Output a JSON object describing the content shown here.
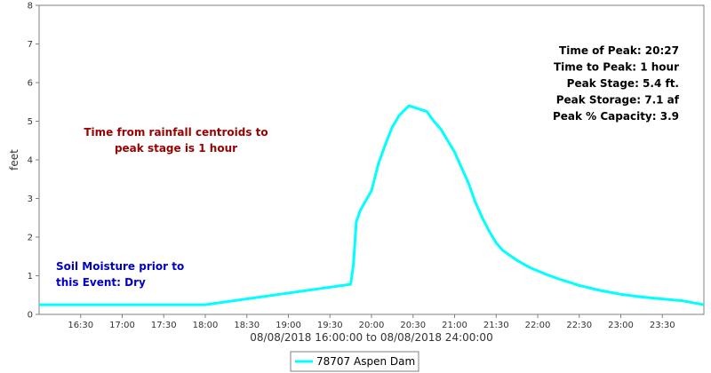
{
  "chart_data": {
    "type": "line",
    "xlabel": "08/08/2018 16:00:00 to 08/08/2018 24:00:00",
    "ylabel": "feet",
    "xlim": [
      "16:00",
      "24:00"
    ],
    "ylim": [
      0,
      8
    ],
    "x_tick_labels": [
      "16:30",
      "17:00",
      "17:30",
      "18:00",
      "18:30",
      "19:00",
      "19:30",
      "20:00",
      "20:30",
      "21:00",
      "21:30",
      "22:00",
      "22:30",
      "23:00",
      "23:30"
    ],
    "y_tick_labels": [
      "0",
      "1",
      "2",
      "3",
      "4",
      "5",
      "6",
      "7",
      "8"
    ],
    "grid": false,
    "legend_position": "bottom-center",
    "series": [
      {
        "name": "78707 Aspen Dam",
        "color": "#00ffff",
        "x": [
          "16:00",
          "18:00",
          "19:45",
          "19:47",
          "19:49",
          "19:52",
          "20:00",
          "20:05",
          "20:10",
          "20:15",
          "20:20",
          "20:27",
          "20:40",
          "20:45",
          "20:50",
          "21:00",
          "21:05",
          "21:10",
          "21:15",
          "21:20",
          "21:25",
          "21:30",
          "21:35",
          "21:45",
          "21:55",
          "22:05",
          "22:15",
          "22:30",
          "22:45",
          "23:00",
          "23:15",
          "23:30",
          "23:45",
          "24:00"
        ],
        "values": [
          0.25,
          0.25,
          0.78,
          1.3,
          2.4,
          2.7,
          3.2,
          3.9,
          4.4,
          4.85,
          5.15,
          5.4,
          5.25,
          5.0,
          4.8,
          4.2,
          3.8,
          3.4,
          2.9,
          2.5,
          2.15,
          1.85,
          1.65,
          1.4,
          1.2,
          1.05,
          0.92,
          0.75,
          0.62,
          0.52,
          0.45,
          0.4,
          0.35,
          0.25
        ]
      }
    ],
    "info_box": [
      "Time of Peak: 20:27",
      "Time to Peak: 1 hour",
      "Peak Stage: 5.4 ft.",
      "Peak Storage: 7.1 af",
      "Peak % Capacity: 3.9"
    ],
    "annotations": [
      {
        "lines": [
          "Time from rainfall centroids to",
          "peak stage is 1 hour"
        ],
        "color": "#990000"
      },
      {
        "lines": [
          "Soil Moisture prior to",
          "this Event: Dry"
        ],
        "color": "#0000cc"
      }
    ]
  }
}
